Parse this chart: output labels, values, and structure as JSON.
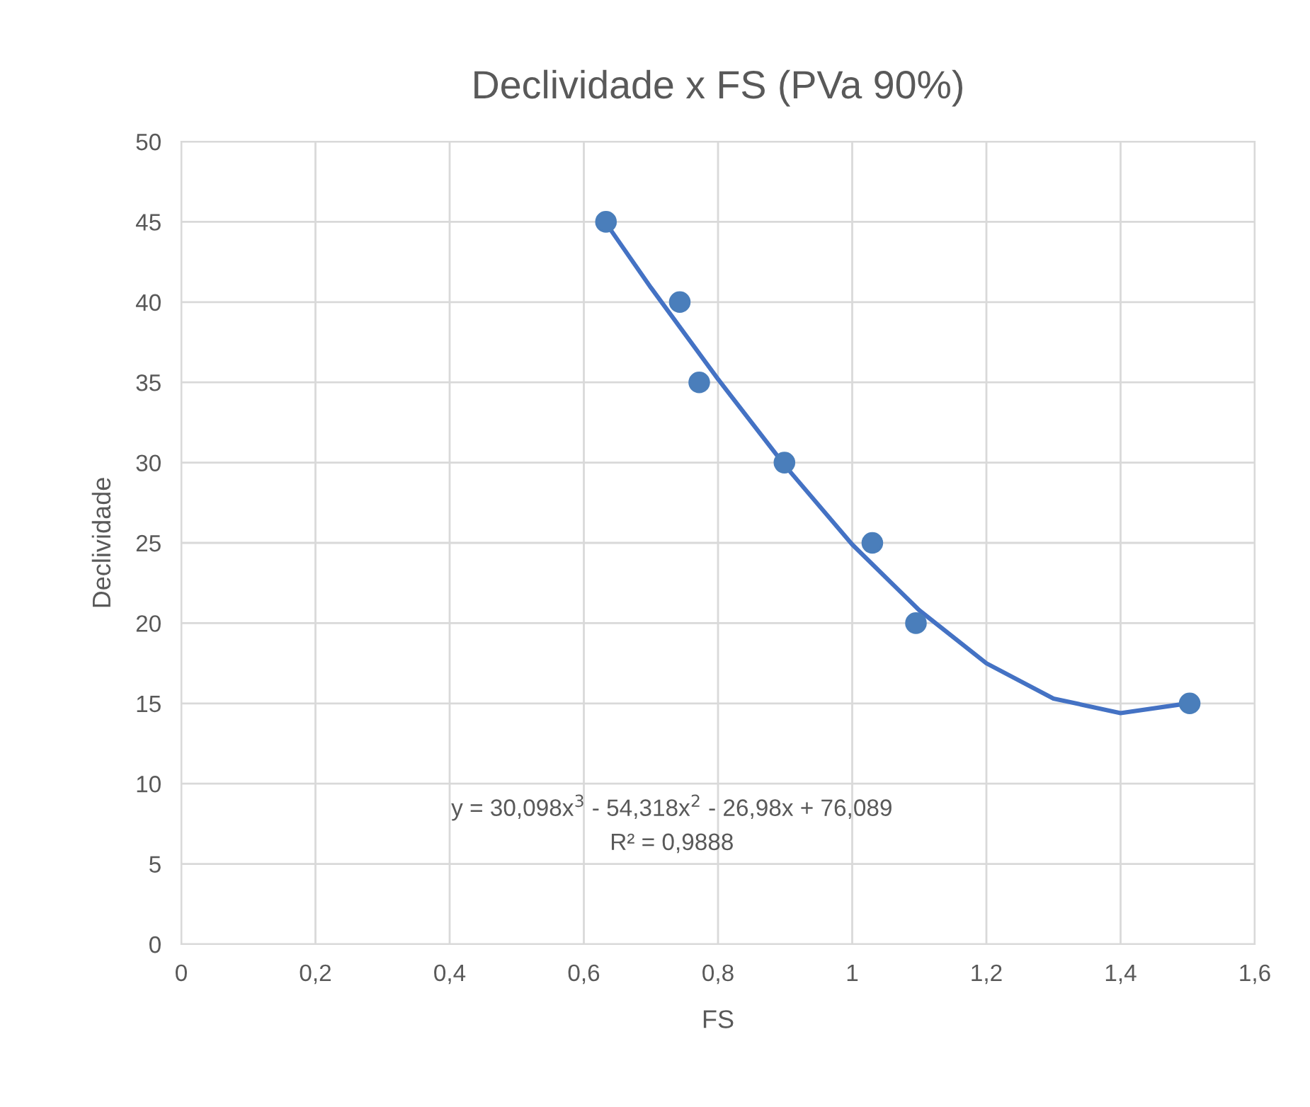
{
  "chart_data": {
    "type": "scatter",
    "title": "Declividade x FS (PVa 90%)",
    "xlabel": "FS",
    "ylabel": "Declividade",
    "series": [
      {
        "color": "#4a7ebb",
        "marker": "circle",
        "x": [
          0.633,
          0.743,
          0.772,
          0.899,
          1.03,
          1.095,
          1.503
        ],
        "values": [
          45,
          40,
          35,
          30,
          25,
          20,
          15
        ]
      },
      {
        "type": "line",
        "color": "#4472c4",
        "marker": "none",
        "x": [
          0.63,
          0.7,
          0.8,
          0.9,
          1.0,
          1.1,
          1.2,
          1.3,
          1.4,
          1.5
        ],
        "values": [
          45.1,
          40.9,
          35.2,
          29.8,
          24.9,
          20.8,
          17.5,
          15.3,
          14.4,
          15.0
        ]
      }
    ],
    "xlim": [
      0,
      1.6
    ],
    "xticks": [
      0,
      {
        "value": 0.2,
        "label": "0,2"
      },
      {
        "value": 0.4,
        "label": "0,4"
      },
      {
        "value": 0.6,
        "label": "0,6"
      },
      {
        "value": 0.8,
        "label": "0,8"
      },
      1,
      {
        "value": 1.2,
        "label": "1,2"
      },
      {
        "value": 1.4,
        "label": "1,4"
      },
      {
        "value": 1.6,
        "label": "1,6"
      }
    ],
    "ylim": [
      0,
      50
    ],
    "yticks": [
      0,
      5,
      10,
      15,
      20,
      25,
      30,
      35,
      40,
      45,
      50
    ],
    "grid": true,
    "legend": false,
    "annotations": [
      "y = 30,098x$^{3}$ - 54,318x$^{2}$ - 26,98x + 76,089",
      "R² = 0,9888"
    ]
  }
}
